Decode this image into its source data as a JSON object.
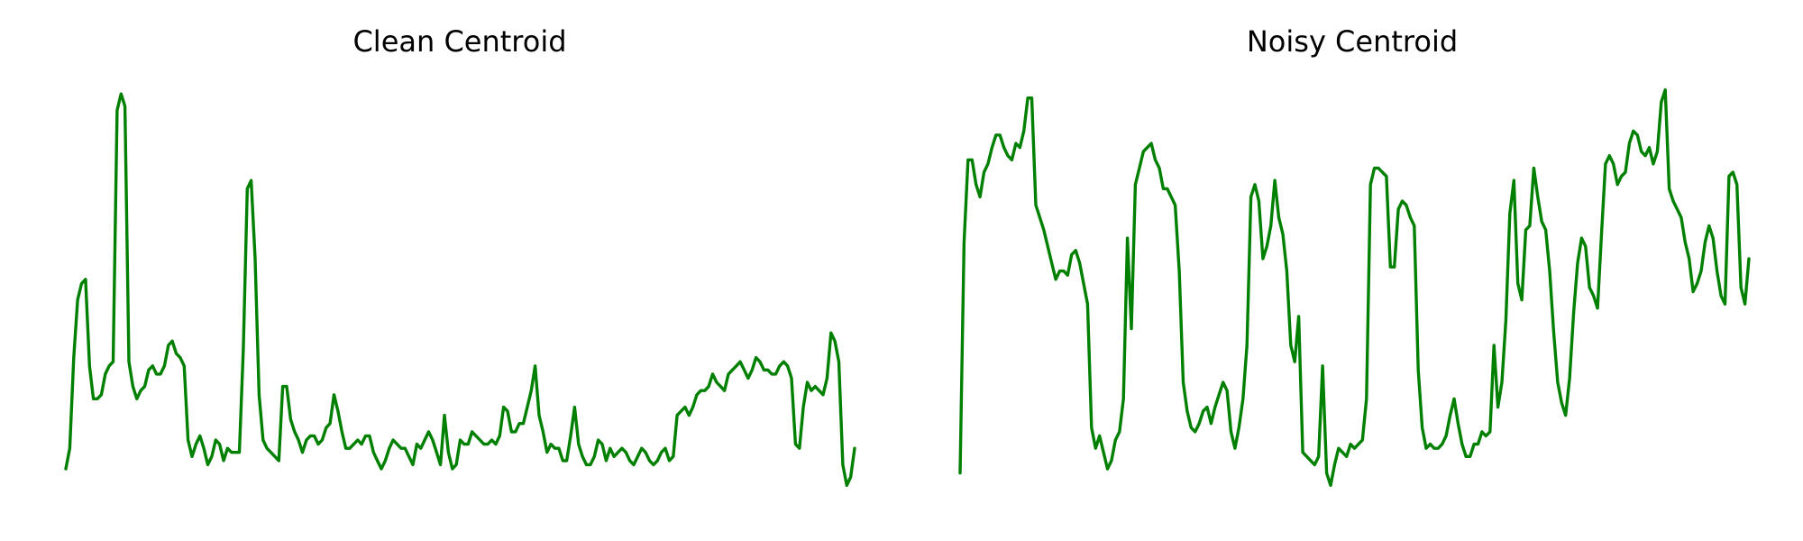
{
  "chart_data": [
    {
      "type": "line",
      "title": "Clean Centroid",
      "axes_visible": false,
      "grid": false,
      "color": "#008000",
      "ylim": [
        0,
        1
      ],
      "y": [
        0.07,
        0.12,
        0.34,
        0.48,
        0.52,
        0.53,
        0.32,
        0.24,
        0.24,
        0.25,
        0.3,
        0.32,
        0.33,
        0.94,
        0.98,
        0.95,
        0.33,
        0.27,
        0.24,
        0.26,
        0.27,
        0.31,
        0.32,
        0.3,
        0.3,
        0.32,
        0.37,
        0.38,
        0.35,
        0.34,
        0.32,
        0.14,
        0.1,
        0.13,
        0.15,
        0.12,
        0.08,
        0.1,
        0.14,
        0.13,
        0.09,
        0.12,
        0.11,
        0.11,
        0.11,
        0.36,
        0.75,
        0.77,
        0.58,
        0.25,
        0.14,
        0.12,
        0.11,
        0.1,
        0.09,
        0.27,
        0.27,
        0.19,
        0.16,
        0.14,
        0.11,
        0.14,
        0.15,
        0.15,
        0.13,
        0.14,
        0.17,
        0.18,
        0.25,
        0.21,
        0.16,
        0.12,
        0.12,
        0.13,
        0.14,
        0.13,
        0.15,
        0.15,
        0.11,
        0.09,
        0.07,
        0.09,
        0.12,
        0.14,
        0.13,
        0.12,
        0.12,
        0.1,
        0.08,
        0.13,
        0.12,
        0.14,
        0.16,
        0.14,
        0.11,
        0.08,
        0.2,
        0.11,
        0.07,
        0.08,
        0.14,
        0.13,
        0.13,
        0.16,
        0.15,
        0.14,
        0.13,
        0.13,
        0.14,
        0.13,
        0.15,
        0.22,
        0.21,
        0.16,
        0.16,
        0.18,
        0.18,
        0.22,
        0.26,
        0.32,
        0.2,
        0.16,
        0.11,
        0.13,
        0.12,
        0.12,
        0.09,
        0.09,
        0.15,
        0.22,
        0.13,
        0.1,
        0.08,
        0.08,
        0.1,
        0.14,
        0.13,
        0.09,
        0.12,
        0.1,
        0.11,
        0.12,
        0.11,
        0.09,
        0.08,
        0.1,
        0.12,
        0.11,
        0.09,
        0.08,
        0.09,
        0.11,
        0.12,
        0.09,
        0.1,
        0.2,
        0.21,
        0.22,
        0.2,
        0.22,
        0.25,
        0.26,
        0.26,
        0.27,
        0.3,
        0.28,
        0.27,
        0.26,
        0.3,
        0.31,
        0.32,
        0.33,
        0.31,
        0.29,
        0.31,
        0.34,
        0.33,
        0.31,
        0.31,
        0.3,
        0.3,
        0.32,
        0.33,
        0.32,
        0.29,
        0.13,
        0.12,
        0.22,
        0.28,
        0.26,
        0.27,
        0.26,
        0.25,
        0.29,
        0.4,
        0.38,
        0.33,
        0.08,
        0.03,
        0.05,
        0.12
      ]
    },
    {
      "type": "line",
      "title": "Noisy Centroid",
      "axes_visible": false,
      "grid": false,
      "color": "#008000",
      "ylim": [
        0,
        1
      ],
      "y": [
        0.06,
        0.62,
        0.82,
        0.82,
        0.76,
        0.73,
        0.79,
        0.81,
        0.85,
        0.88,
        0.88,
        0.85,
        0.83,
        0.82,
        0.86,
        0.85,
        0.89,
        0.97,
        0.97,
        0.71,
        0.68,
        0.65,
        0.61,
        0.57,
        0.53,
        0.55,
        0.55,
        0.54,
        0.59,
        0.6,
        0.57,
        0.52,
        0.47,
        0.17,
        0.12,
        0.15,
        0.11,
        0.07,
        0.09,
        0.14,
        0.16,
        0.24,
        0.63,
        0.41,
        0.76,
        0.8,
        0.84,
        0.85,
        0.86,
        0.82,
        0.8,
        0.75,
        0.75,
        0.73,
        0.71,
        0.55,
        0.28,
        0.21,
        0.17,
        0.16,
        0.18,
        0.21,
        0.22,
        0.18,
        0.22,
        0.25,
        0.28,
        0.26,
        0.16,
        0.12,
        0.17,
        0.24,
        0.37,
        0.73,
        0.76,
        0.72,
        0.58,
        0.61,
        0.66,
        0.77,
        0.68,
        0.64,
        0.55,
        0.37,
        0.33,
        0.44,
        0.11,
        0.1,
        0.09,
        0.08,
        0.1,
        0.32,
        0.06,
        0.03,
        0.08,
        0.12,
        0.11,
        0.1,
        0.13,
        0.12,
        0.13,
        0.14,
        0.24,
        0.76,
        0.8,
        0.8,
        0.79,
        0.78,
        0.56,
        0.56,
        0.7,
        0.72,
        0.71,
        0.68,
        0.66,
        0.31,
        0.17,
        0.12,
        0.13,
        0.12,
        0.12,
        0.13,
        0.15,
        0.2,
        0.24,
        0.18,
        0.13,
        0.1,
        0.1,
        0.13,
        0.13,
        0.16,
        0.15,
        0.16,
        0.37,
        0.22,
        0.28,
        0.43,
        0.69,
        0.77,
        0.52,
        0.48,
        0.65,
        0.66,
        0.8,
        0.73,
        0.67,
        0.65,
        0.55,
        0.4,
        0.28,
        0.23,
        0.2,
        0.29,
        0.45,
        0.57,
        0.63,
        0.61,
        0.51,
        0.49,
        0.46,
        0.64,
        0.81,
        0.83,
        0.81,
        0.76,
        0.78,
        0.79,
        0.86,
        0.89,
        0.88,
        0.84,
        0.83,
        0.85,
        0.81,
        0.84,
        0.96,
        0.99,
        0.75,
        0.72,
        0.7,
        0.68,
        0.62,
        0.58,
        0.5,
        0.52,
        0.55,
        0.62,
        0.66,
        0.63,
        0.55,
        0.49,
        0.47,
        0.78,
        0.79,
        0.76,
        0.51,
        0.47,
        0.58
      ]
    }
  ]
}
